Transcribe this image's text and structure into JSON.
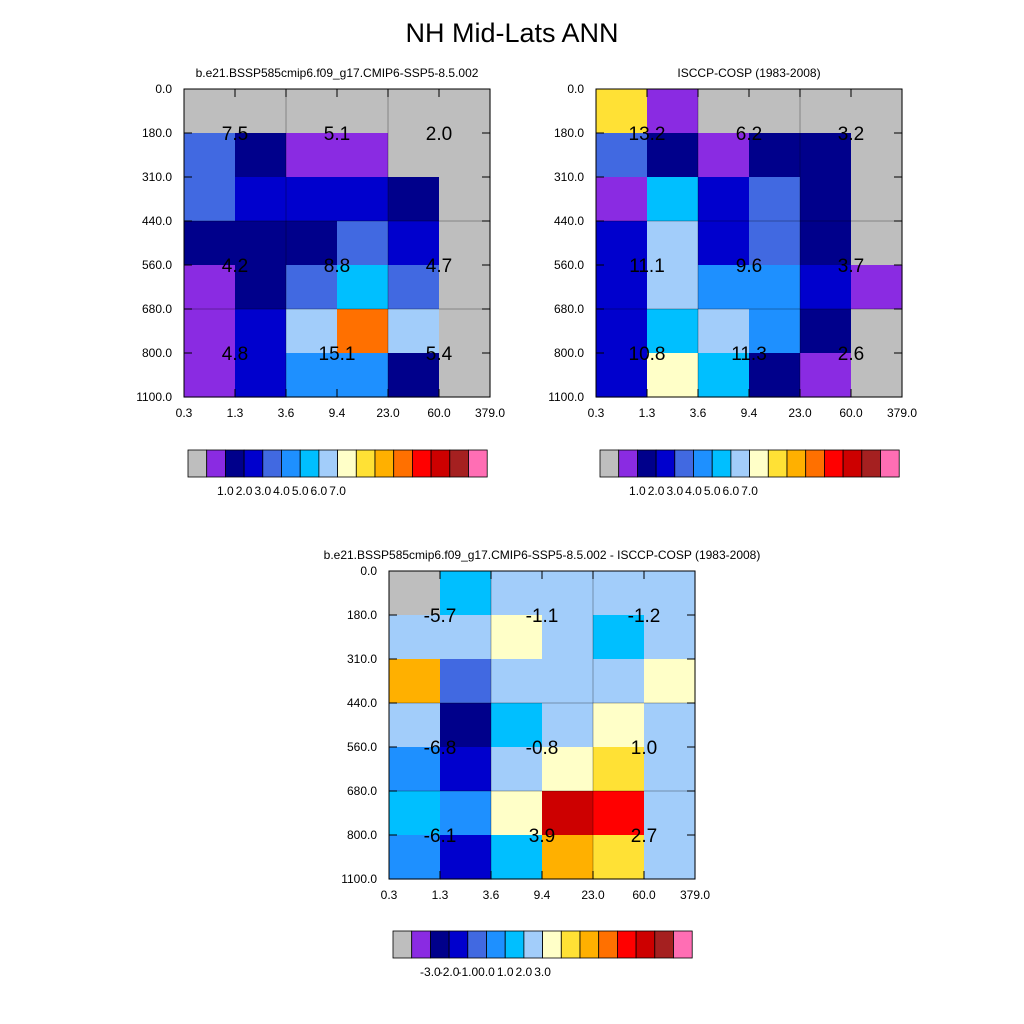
{
  "page": {
    "title": "NH Mid-Lats ANN"
  },
  "chart_data": [
    {
      "type": "heatmap",
      "title": "b.e21.BSSP585cmip6.f09_g17.CMIP6-SSP5-8.5.002",
      "x_ticks": [
        "0.3",
        "1.3",
        "3.6",
        "9.4",
        "23.0",
        "60.0",
        "379.0"
      ],
      "y_ticks": [
        "0.0",
        "180.0",
        "310.0",
        "440.0",
        "560.0",
        "680.0",
        "800.0",
        "1100.0"
      ],
      "palette": [
        "#bebebe",
        "#8a2be2",
        "#00008b",
        "#0000cd",
        "#4169e1",
        "#1e90ff",
        "#00bfff",
        "#a2cdfa",
        "#ffffc8",
        "#ffe135",
        "#ffb000",
        "#ff7000",
        "#ff0000",
        "#cd0000",
        "#a52020",
        "#ff6eb4"
      ],
      "colorbar_labels": [
        "1.0",
        "2.0",
        "3.0",
        "4.0",
        "5.0",
        "6.0",
        "7.0"
      ],
      "cell_colors": [
        [
          "#bebebe",
          "#bebebe",
          "#bebebe",
          "#bebebe",
          "#bebebe",
          "#bebebe"
        ],
        [
          "#4169e1",
          "#00008b",
          "#8a2be2",
          "#8a2be2",
          "#bebebe",
          "#bebebe"
        ],
        [
          "#4169e1",
          "#0000cd",
          "#0000cd",
          "#0000cd",
          "#00008b",
          "#bebebe"
        ],
        [
          "#00008b",
          "#00008b",
          "#00008b",
          "#4169e1",
          "#0000cd",
          "#bebebe"
        ],
        [
          "#8a2be2",
          "#00008b",
          "#4169e1",
          "#00bfff",
          "#4169e1",
          "#bebebe"
        ],
        [
          "#8a2be2",
          "#0000cd",
          "#a2cdfa",
          "#ff7000",
          "#a2cdfa",
          "#bebebe"
        ],
        [
          "#8a2be2",
          "#0000cd",
          "#1e90ff",
          "#1e90ff",
          "#00008b",
          "#bebebe"
        ]
      ],
      "annotations": [
        {
          "value": "7.5",
          "x": "1.3",
          "y": "180.0"
        },
        {
          "value": "5.1",
          "x": "9.4",
          "y": "180.0"
        },
        {
          "value": "2.0",
          "x": "60.0",
          "y": "180.0"
        },
        {
          "value": "4.2",
          "x": "1.3",
          "y": "560.0"
        },
        {
          "value": "8.8",
          "x": "9.4",
          "y": "560.0"
        },
        {
          "value": "4.7",
          "x": "60.0",
          "y": "560.0"
        },
        {
          "value": "4.8",
          "x": "1.3",
          "y": "800.0"
        },
        {
          "value": "15.1",
          "x": "9.4",
          "y": "800.0"
        },
        {
          "value": "5.4",
          "x": "60.0",
          "y": "800.0"
        }
      ]
    },
    {
      "type": "heatmap",
      "title": "ISCCP-COSP (1983-2008)",
      "x_ticks": [
        "0.3",
        "1.3",
        "3.6",
        "9.4",
        "23.0",
        "60.0",
        "379.0"
      ],
      "y_ticks": [
        "0.0",
        "180.0",
        "310.0",
        "440.0",
        "560.0",
        "680.0",
        "800.0",
        "1100.0"
      ],
      "palette": [
        "#bebebe",
        "#8a2be2",
        "#00008b",
        "#0000cd",
        "#4169e1",
        "#1e90ff",
        "#00bfff",
        "#a2cdfa",
        "#ffffc8",
        "#ffe135",
        "#ffb000",
        "#ff7000",
        "#ff0000",
        "#cd0000",
        "#a52020",
        "#ff6eb4"
      ],
      "colorbar_labels": [
        "1.0",
        "2.0",
        "3.0",
        "4.0",
        "5.0",
        "6.0",
        "7.0"
      ],
      "cell_colors": [
        [
          "#ffe135",
          "#8a2be2",
          "#bebebe",
          "#bebebe",
          "#bebebe",
          "#bebebe"
        ],
        [
          "#4169e1",
          "#00008b",
          "#8a2be2",
          "#00008b",
          "#00008b",
          "#bebebe"
        ],
        [
          "#8a2be2",
          "#00bfff",
          "#0000cd",
          "#4169e1",
          "#00008b",
          "#bebebe"
        ],
        [
          "#0000cd",
          "#a2cdfa",
          "#0000cd",
          "#4169e1",
          "#00008b",
          "#bebebe"
        ],
        [
          "#0000cd",
          "#a2cdfa",
          "#1e90ff",
          "#1e90ff",
          "#0000cd",
          "#8a2be2"
        ],
        [
          "#0000cd",
          "#00bfff",
          "#a2cdfa",
          "#1e90ff",
          "#00008b",
          "#bebebe"
        ],
        [
          "#0000cd",
          "#ffffc8",
          "#00bfff",
          "#00008b",
          "#8a2be2",
          "#bebebe"
        ]
      ],
      "annotations": [
        {
          "value": "13.2",
          "x": "1.3",
          "y": "180.0"
        },
        {
          "value": "6.2",
          "x": "9.4",
          "y": "180.0"
        },
        {
          "value": "3.2",
          "x": "60.0",
          "y": "180.0"
        },
        {
          "value": "11.1",
          "x": "1.3",
          "y": "560.0"
        },
        {
          "value": "9.6",
          "x": "9.4",
          "y": "560.0"
        },
        {
          "value": "3.7",
          "x": "60.0",
          "y": "560.0"
        },
        {
          "value": "10.8",
          "x": "1.3",
          "y": "800.0"
        },
        {
          "value": "11.3",
          "x": "9.4",
          "y": "800.0"
        },
        {
          "value": "2.6",
          "x": "60.0",
          "y": "800.0"
        }
      ]
    },
    {
      "type": "heatmap",
      "title": "b.e21.BSSP585cmip6.f09_g17.CMIP6-SSP5-8.5.002 - ISCCP-COSP (1983-2008)",
      "x_ticks": [
        "0.3",
        "1.3",
        "3.6",
        "9.4",
        "23.0",
        "60.0",
        "379.0"
      ],
      "y_ticks": [
        "0.0",
        "180.0",
        "310.0",
        "440.0",
        "560.0",
        "680.0",
        "800.0",
        "1100.0"
      ],
      "palette": [
        "#bebebe",
        "#8a2be2",
        "#00008b",
        "#0000cd",
        "#4169e1",
        "#1e90ff",
        "#00bfff",
        "#a2cdfa",
        "#ffffc8",
        "#ffe135",
        "#ffb000",
        "#ff7000",
        "#ff0000",
        "#cd0000",
        "#a52020",
        "#ff6eb4"
      ],
      "colorbar_labels": [
        "-3.0",
        "-2.0",
        "-1.0",
        "0.0",
        "1.0",
        "2.0",
        "3.0"
      ],
      "cell_colors": [
        [
          "#bebebe",
          "#00bfff",
          "#a2cdfa",
          "#a2cdfa",
          "#a2cdfa",
          "#a2cdfa"
        ],
        [
          "#a2cdfa",
          "#a2cdfa",
          "#ffffc8",
          "#a2cdfa",
          "#00bfff",
          "#a2cdfa"
        ],
        [
          "#ffb000",
          "#4169e1",
          "#a2cdfa",
          "#a2cdfa",
          "#a2cdfa",
          "#ffffc8"
        ],
        [
          "#a2cdfa",
          "#00008b",
          "#00bfff",
          "#a2cdfa",
          "#ffffc8",
          "#a2cdfa"
        ],
        [
          "#1e90ff",
          "#0000cd",
          "#a2cdfa",
          "#ffffc8",
          "#ffe135",
          "#a2cdfa"
        ],
        [
          "#00bfff",
          "#1e90ff",
          "#ffffc8",
          "#cd0000",
          "#ff0000",
          "#a2cdfa"
        ],
        [
          "#1e90ff",
          "#0000cd",
          "#00bfff",
          "#ffb000",
          "#ffe135",
          "#a2cdfa"
        ]
      ],
      "annotations": [
        {
          "value": "-5.7",
          "x": "1.3",
          "y": "180.0"
        },
        {
          "value": "-1.1",
          "x": "9.4",
          "y": "180.0"
        },
        {
          "value": "-1.2",
          "x": "60.0",
          "y": "180.0"
        },
        {
          "value": "-6.8",
          "x": "1.3",
          "y": "560.0"
        },
        {
          "value": "-0.8",
          "x": "9.4",
          "y": "560.0"
        },
        {
          "value": "1.0",
          "x": "60.0",
          "y": "560.0"
        },
        {
          "value": "-6.1",
          "x": "1.3",
          "y": "800.0"
        },
        {
          "value": "3.9",
          "x": "9.4",
          "y": "800.0"
        },
        {
          "value": "2.7",
          "x": "60.0",
          "y": "800.0"
        }
      ]
    }
  ]
}
